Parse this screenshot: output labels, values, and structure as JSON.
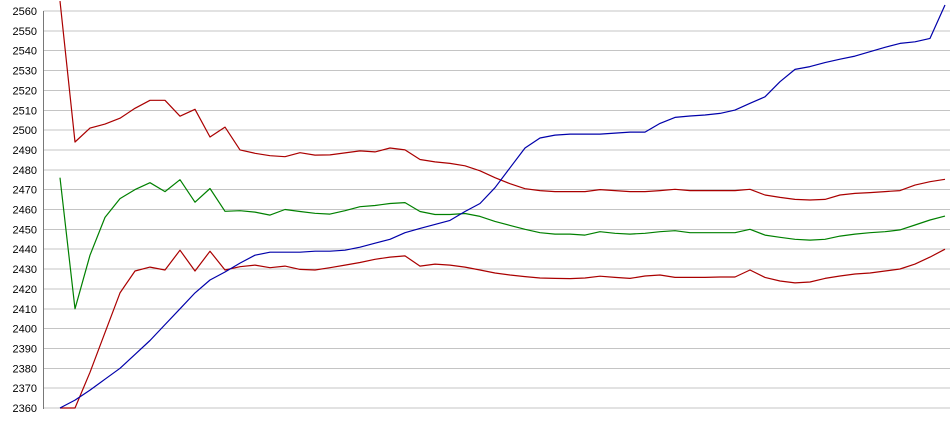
{
  "window": {
    "background_color": "#ffffff"
  },
  "chart_data": {
    "type": "line",
    "title": "",
    "xlabel": "",
    "ylabel": "",
    "grid": "horizontal",
    "legend": "none",
    "x_axis": {
      "tick_labels_visible": false,
      "num_points": 60
    },
    "y_axis": {
      "min": 2360,
      "max": 2560,
      "tick_step": 10,
      "tick_labels": [
        "2560",
        "2550",
        "2540",
        "2530",
        "2520",
        "2510",
        "2500",
        "2490",
        "2480",
        "2470",
        "2460",
        "2450",
        "2440",
        "2430",
        "2420",
        "2410",
        "2400",
        "2390",
        "2380",
        "2370",
        "2360"
      ]
    },
    "colors": {
      "gridline": "#c4c4c4",
      "axis_line": "#787878",
      "tick_text": "#000000",
      "series_red_upper": "#aa0000",
      "series_green": "#008000",
      "series_red_lower": "#aa0000",
      "series_blue": "#0000aa"
    },
    "series": [
      {
        "name": "red-upper-line",
        "color_key": "series_red_upper",
        "values": [
          2565,
          2494,
          2501,
          2503,
          2506,
          2511,
          2515,
          2515,
          2507,
          2510.5,
          2496.5,
          2501.5,
          2490,
          2488.3,
          2487.1,
          2486.6,
          2488.6,
          2487.4,
          2487.5,
          2488.5,
          2489.5,
          2489,
          2491,
          2490,
          2485.2,
          2484,
          2483.2,
          2482,
          2479.5,
          2476,
          2473,
          2470.5,
          2469.5,
          2469,
          2469,
          2469,
          2470,
          2469.5,
          2469,
          2469,
          2469.5,
          2470.2,
          2469.5,
          2469.5,
          2469.5,
          2469.5,
          2470.2,
          2467.3,
          2466.1,
          2465.1,
          2464.8,
          2465.1,
          2467.3,
          2468.1,
          2468.5,
          2469,
          2469.5,
          2472.3,
          2474,
          2475.2
        ]
      },
      {
        "name": "green-line",
        "color_key": "series_green",
        "values": [
          2476,
          2410,
          2437,
          2456,
          2465.5,
          2470,
          2473.5,
          2469,
          2475,
          2463.7,
          2470.6,
          2459.1,
          2459.4,
          2458.7,
          2457.2,
          2460,
          2459,
          2458.1,
          2457.7,
          2459.4,
          2461.4,
          2462,
          2463,
          2463.5,
          2459,
          2457.5,
          2457.5,
          2458,
          2456.5,
          2454,
          2452,
          2450,
          2448.3,
          2447.6,
          2447.6,
          2447.1,
          2448.8,
          2448,
          2447.6,
          2448,
          2448.8,
          2449.3,
          2448.3,
          2448.3,
          2448.3,
          2448.3,
          2450,
          2447.1,
          2446,
          2445,
          2444.6,
          2445,
          2446.6,
          2447.6,
          2448.3,
          2448.8,
          2449.7,
          2452.2,
          2454.7,
          2456.7
        ]
      },
      {
        "name": "red-lower-line",
        "color_key": "series_red_lower",
        "values": [
          2360,
          2360,
          2378,
          2398,
          2418,
          2429,
          2431,
          2429.5,
          2439.5,
          2429,
          2439,
          2429.5,
          2431.2,
          2432,
          2430.7,
          2431.5,
          2429.8,
          2429.5,
          2430.7,
          2432,
          2433.3,
          2434.9,
          2436,
          2436.6,
          2431.5,
          2432.5,
          2432,
          2431,
          2429.5,
          2428,
          2427,
          2426.2,
          2425.5,
          2425.3,
          2425.2,
          2425.5,
          2426.4,
          2425.8,
          2425.3,
          2426.5,
          2427,
          2425.8,
          2425.8,
          2425.8,
          2426,
          2426,
          2429.5,
          2425.8,
          2424,
          2423,
          2423.5,
          2425.3,
          2426.5,
          2427.5,
          2428,
          2429,
          2430,
          2432.5,
          2436,
          2440
        ]
      },
      {
        "name": "blue-line",
        "color_key": "series_blue",
        "values": [
          2360,
          2364,
          2369,
          2374.5,
          2380,
          2387,
          2394,
          2402,
          2410,
          2418,
          2424.5,
          2428.5,
          2433,
          2437,
          2438.5,
          2438.5,
          2438.5,
          2439,
          2439,
          2439.5,
          2441,
          2443,
          2445,
          2448.3,
          2450.5,
          2452.5,
          2454.5,
          2459,
          2463,
          2471,
          2481,
          2491,
          2496,
          2497.5,
          2498,
          2498,
          2498,
          2498.5,
          2499,
          2499,
          2503.4,
          2506.4,
          2507.1,
          2507.6,
          2508.4,
          2510.1,
          2513.5,
          2516.8,
          2524.4,
          2530.6,
          2532,
          2534,
          2535.7,
          2537.3,
          2539.5,
          2541.7,
          2543.7,
          2544.5,
          2546.2,
          2563
        ]
      }
    ]
  }
}
